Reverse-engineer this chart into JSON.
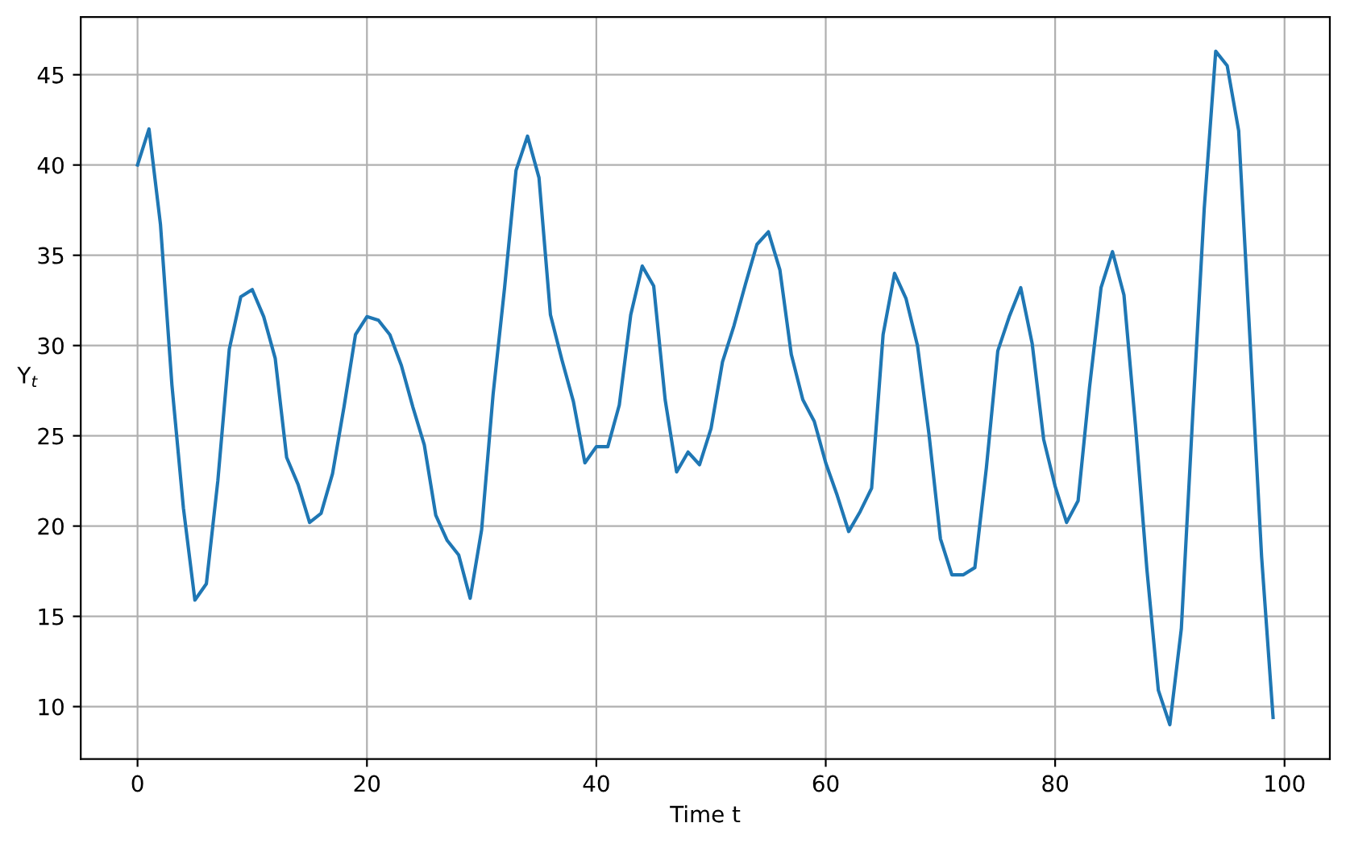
{
  "chart_data": {
    "type": "line",
    "xlabel": "Time t",
    "ylabel": "Y$_{t}$",
    "x": [
      0,
      1,
      2,
      3,
      4,
      5,
      6,
      7,
      8,
      9,
      10,
      11,
      12,
      13,
      14,
      15,
      16,
      17,
      18,
      19,
      20,
      21,
      22,
      23,
      24,
      25,
      26,
      27,
      28,
      29,
      30,
      31,
      32,
      33,
      34,
      35,
      36,
      37,
      38,
      39,
      40,
      41,
      42,
      43,
      44,
      45,
      46,
      47,
      48,
      49,
      50,
      51,
      52,
      53,
      54,
      55,
      56,
      57,
      58,
      59,
      60,
      61,
      62,
      63,
      64,
      65,
      66,
      67,
      68,
      69,
      70,
      71,
      72,
      73,
      74,
      75,
      76,
      77,
      78,
      79,
      80,
      81,
      82,
      83,
      84,
      85,
      86,
      87,
      88,
      89,
      90,
      91,
      92,
      93,
      94,
      95,
      96,
      97,
      98,
      99
    ],
    "series": [
      {
        "color": "#1f77b4",
        "values": [
          40,
          42,
          36.7,
          27.8,
          21,
          15.9,
          16.8,
          22.5,
          29.8,
          32.7,
          33.1,
          31.6,
          29.3,
          23.8,
          22.3,
          20.2,
          20.7,
          22.9,
          26.6,
          30.6,
          31.6,
          31.4,
          30.6,
          28.9,
          26.6,
          24.5,
          20.6,
          19.2,
          18.4,
          16.0,
          19.8,
          27.3,
          33.2,
          39.7,
          41.6,
          39.3,
          31.7,
          29.2,
          26.9,
          23.5,
          24.4,
          24.4,
          26.7,
          31.7,
          34.4,
          33.3,
          27.0,
          23.0,
          24.1,
          23.4,
          25.4,
          29.1,
          31.1,
          33.4,
          35.6,
          36.3,
          34.2,
          29.5,
          27.0,
          25.8,
          23.5,
          21.7,
          19.7,
          20.8,
          22.1,
          30.6,
          34.0,
          32.6,
          30.0,
          25.1,
          19.3,
          17.3,
          17.3,
          17.7,
          23.2,
          29.7,
          31.6,
          33.2,
          30.1,
          24.8,
          22.2,
          20.2,
          21.4,
          27.7,
          33.2,
          35.2,
          32.8,
          25.6,
          17.6,
          10.9,
          9.0,
          14.3,
          26.2,
          37.6,
          46.3,
          45.5,
          41.9,
          30.2,
          18.3,
          9.4
        ]
      }
    ],
    "xlim": [
      -4.95,
      103.95
    ],
    "ylim": [
      7.1,
      48.2
    ],
    "xticks": [
      0,
      20,
      40,
      60,
      80,
      100
    ],
    "yticks": [
      10,
      15,
      20,
      25,
      30,
      35,
      40,
      45
    ],
    "grid": true,
    "marker": "none",
    "line_style": "solid"
  }
}
